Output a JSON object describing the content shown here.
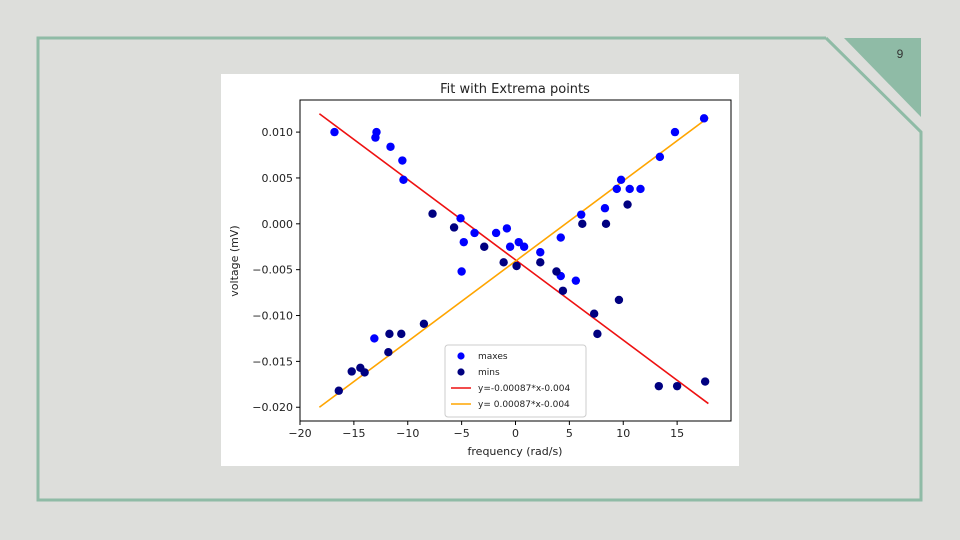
{
  "slide": {
    "number": "9",
    "background_color": "#dddedb",
    "frame_color": "#8fbba6"
  },
  "chart_data": {
    "type": "scatter",
    "title": "Fit with Extrema points",
    "xlabel": "frequency (rad/s)",
    "ylabel": "voltage (mV)",
    "xlim": [
      -20,
      20
    ],
    "ylim": [
      -0.0215,
      0.0135
    ],
    "x_ticks": [
      -20,
      -15,
      -10,
      -5,
      0,
      5,
      10,
      15
    ],
    "x_tick_labels": [
      "−20",
      "−15",
      "−10",
      "−5",
      "0",
      "5",
      "10",
      "15"
    ],
    "y_ticks": [
      0.01,
      0.005,
      0.0,
      -0.005,
      -0.01,
      -0.015,
      -0.02
    ],
    "y_tick_labels": [
      "0.010",
      "0.005",
      "0.000",
      "−0.005",
      "−0.010",
      "−0.015",
      "−0.020"
    ],
    "grid": false,
    "legend_position": "lower-center",
    "scatter_series": [
      {
        "name": "maxes",
        "color": "#0000ff",
        "points": [
          [
            -16.8,
            0.01
          ],
          [
            -12.9,
            0.01
          ],
          [
            -13.0,
            0.0094
          ],
          [
            -11.6,
            0.0084
          ],
          [
            -10.5,
            0.0069
          ],
          [
            -10.4,
            0.0048
          ],
          [
            -5.1,
            0.0006
          ],
          [
            -4.8,
            -0.002
          ],
          [
            -5.0,
            -0.0052
          ],
          [
            -3.8,
            -0.001
          ],
          [
            -1.8,
            -0.001
          ],
          [
            -0.8,
            -0.0005
          ],
          [
            -0.5,
            -0.0025
          ],
          [
            0.3,
            -0.002
          ],
          [
            0.8,
            -0.0025
          ],
          [
            2.3,
            -0.0031
          ],
          [
            4.2,
            -0.0015
          ],
          [
            4.2,
            -0.0057
          ],
          [
            5.6,
            -0.0062
          ],
          [
            6.1,
            0.001
          ],
          [
            8.3,
            0.0017
          ],
          [
            9.4,
            0.0038
          ],
          [
            9.8,
            0.0048
          ],
          [
            10.6,
            0.0038
          ],
          [
            11.6,
            0.0038
          ],
          [
            13.4,
            0.0073
          ],
          [
            14.8,
            0.01
          ],
          [
            17.5,
            0.0115
          ],
          [
            -13.1,
            -0.0125
          ]
        ]
      },
      {
        "name": "mins",
        "color": "#000080",
        "points": [
          [
            -16.4,
            -0.0182
          ],
          [
            -15.2,
            -0.0161
          ],
          [
            -14.4,
            -0.0157
          ],
          [
            -14.0,
            -0.0162
          ],
          [
            -11.8,
            -0.014
          ],
          [
            -11.7,
            -0.012
          ],
          [
            -10.6,
            -0.012
          ],
          [
            -8.5,
            -0.0109
          ],
          [
            -7.7,
            0.0011
          ],
          [
            -5.7,
            -0.0004
          ],
          [
            -2.9,
            -0.0025
          ],
          [
            -1.1,
            -0.0042
          ],
          [
            0.1,
            -0.0046
          ],
          [
            2.3,
            -0.0042
          ],
          [
            3.8,
            -0.0052
          ],
          [
            4.4,
            -0.0073
          ],
          [
            6.2,
            0.0
          ],
          [
            7.3,
            -0.0098
          ],
          [
            7.6,
            -0.012
          ],
          [
            8.4,
            0.0
          ],
          [
            9.6,
            -0.0083
          ],
          [
            10.4,
            0.0021
          ],
          [
            13.3,
            -0.0177
          ],
          [
            15.0,
            -0.0177
          ],
          [
            17.6,
            -0.0172
          ]
        ]
      }
    ],
    "line_series": [
      {
        "name": "y=-0.00087*x-0.004",
        "color": "#ee1111",
        "x": [
          -18.2,
          17.9
        ],
        "y": [
          0.012,
          -0.0196
        ]
      },
      {
        "name": "y= 0.00087*x-0.004",
        "color": "#ffa500",
        "x": [
          -18.2,
          17.9
        ],
        "y": [
          -0.02,
          0.0116
        ]
      }
    ]
  }
}
